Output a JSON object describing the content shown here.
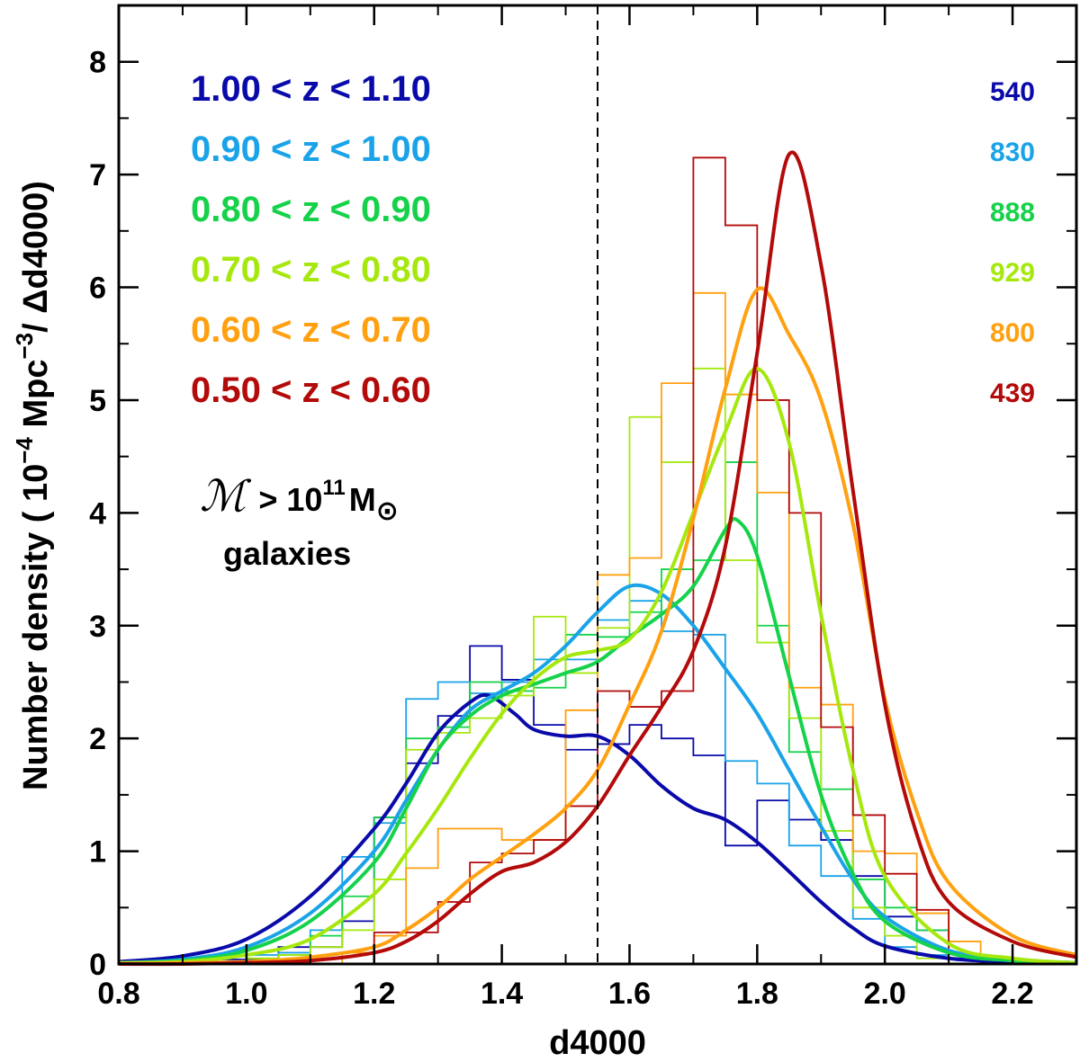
{
  "chart_data": {
    "type": "line",
    "xlabel": "d4000",
    "ylabel_prefix": "Number density ( 10",
    "ylabel_exp": "−4",
    "ylabel_mid": " Mpc",
    "ylabel_exp2": "−3",
    "ylabel_suffix": "/ Δd4000)",
    "xlim": [
      0.8,
      2.3
    ],
    "ylim": [
      0,
      8.5
    ],
    "xticks": [
      0.8,
      1.0,
      1.2,
      1.4,
      1.6,
      1.8,
      2.0,
      2.2
    ],
    "xtick_labels": [
      "0.8",
      "1.0",
      "1.2",
      "1.4",
      "1.6",
      "1.8",
      "2.0",
      "2.2"
    ],
    "yticks": [
      0,
      1,
      2,
      3,
      4,
      5,
      6,
      7,
      8
    ],
    "ytick_labels": [
      "0",
      "1",
      "2",
      "3",
      "4",
      "5",
      "6",
      "7",
      "8"
    ],
    "vline_x": 1.55,
    "annotation": {
      "mass_symbol": "ℳ",
      "mass_text": "> 10",
      "mass_exp": "11",
      "mass_unit": "M",
      "sun_symbol": "⊙",
      "line2": "galaxies"
    },
    "histogram_bins": [
      0.8,
      2.3,
      0.05
    ],
    "series": [
      {
        "name": "1.00 < z < 1.10",
        "count": "540",
        "color": "#0a0aaa",
        "hist": [
          0,
          0,
          0,
          0.04,
          0.04,
          0.15,
          0.15,
          0.38,
          1.3,
          1.78,
          2.2,
          2.82,
          2.52,
          2.12,
          1.9,
          1.95,
          2.12,
          2.0,
          1.85,
          1.05,
          1.45,
          1.28,
          1.1,
          0.78,
          0.42,
          0.3,
          0.05,
          0.02,
          0,
          0
        ],
        "curve_x": [
          0.8,
          0.9,
          1.0,
          1.1,
          1.2,
          1.25,
          1.3,
          1.35,
          1.38,
          1.42,
          1.45,
          1.5,
          1.55,
          1.6,
          1.65,
          1.7,
          1.75,
          1.8,
          1.85,
          1.9,
          1.95,
          2.0,
          2.1,
          2.2,
          2.3
        ],
        "curve_y": [
          0.02,
          0.07,
          0.22,
          0.6,
          1.2,
          1.6,
          2.05,
          2.32,
          2.38,
          2.22,
          2.08,
          2.02,
          2.02,
          1.85,
          1.58,
          1.38,
          1.28,
          1.08,
          0.82,
          0.55,
          0.32,
          0.16,
          0.05,
          0.02,
          0.01
        ]
      },
      {
        "name": "0.90 < z < 1.00",
        "count": "830",
        "color": "#1aa3e8",
        "hist": [
          0,
          0,
          0,
          0,
          0.08,
          0.1,
          0.3,
          0.95,
          1.25,
          2.35,
          2.5,
          2.4,
          2.5,
          2.7,
          2.7,
          3.05,
          3.22,
          2.95,
          2.92,
          1.8,
          1.6,
          1.05,
          0.78,
          0.4,
          0.15,
          0.08,
          0,
          0,
          0,
          0
        ],
        "curve_x": [
          0.8,
          0.9,
          1.0,
          1.1,
          1.2,
          1.25,
          1.3,
          1.35,
          1.4,
          1.45,
          1.5,
          1.55,
          1.6,
          1.65,
          1.7,
          1.75,
          1.8,
          1.85,
          1.9,
          1.95,
          2.0,
          2.1,
          2.2,
          2.3
        ],
        "curve_y": [
          0.01,
          0.04,
          0.15,
          0.45,
          1.0,
          1.45,
          1.9,
          2.25,
          2.42,
          2.58,
          2.82,
          3.12,
          3.35,
          3.28,
          3.0,
          2.62,
          2.22,
          1.72,
          1.22,
          0.75,
          0.42,
          0.12,
          0.04,
          0.01
        ]
      },
      {
        "name": "0.80 < z < 0.90",
        "count": "888",
        "color": "#15d24a",
        "hist": [
          0,
          0,
          0,
          0,
          0.05,
          0.08,
          0.25,
          0.6,
          1.3,
          2.0,
          2.1,
          2.5,
          2.42,
          2.45,
          2.92,
          2.9,
          3.12,
          3.5,
          3.58,
          4.45,
          3.0,
          1.88,
          1.55,
          0.75,
          0.5,
          0.3,
          0,
          0,
          0,
          0
        ],
        "curve_x": [
          0.8,
          0.9,
          1.0,
          1.1,
          1.2,
          1.25,
          1.3,
          1.35,
          1.4,
          1.45,
          1.5,
          1.55,
          1.6,
          1.65,
          1.7,
          1.75,
          1.77,
          1.8,
          1.85,
          1.9,
          1.95,
          2.0,
          2.1,
          2.2,
          2.3
        ],
        "curve_y": [
          0.01,
          0.03,
          0.12,
          0.38,
          0.9,
          1.38,
          1.9,
          2.2,
          2.38,
          2.48,
          2.58,
          2.68,
          2.9,
          3.1,
          3.35,
          3.85,
          3.93,
          3.62,
          2.55,
          1.5,
          0.8,
          0.38,
          0.1,
          0.03,
          0.01
        ]
      },
      {
        "name": "0.70 < z < 0.80",
        "count": "929",
        "color": "#a6e80e",
        "hist": [
          0,
          0,
          0,
          0.08,
          0.05,
          0.08,
          0.15,
          0.3,
          0.75,
          1.9,
          2.05,
          2.18,
          2.38,
          3.08,
          2.58,
          2.98,
          4.85,
          4.45,
          5.28,
          3.58,
          2.85,
          2.18,
          1.18,
          0.5,
          0.25,
          0.05,
          0,
          0,
          0,
          0
        ],
        "curve_x": [
          0.8,
          0.9,
          1.0,
          1.1,
          1.2,
          1.25,
          1.3,
          1.35,
          1.4,
          1.45,
          1.5,
          1.55,
          1.6,
          1.65,
          1.7,
          1.75,
          1.8,
          1.85,
          1.9,
          1.95,
          2.0,
          2.1,
          2.2,
          2.3
        ],
        "curve_y": [
          0.01,
          0.02,
          0.08,
          0.22,
          0.62,
          0.98,
          1.38,
          1.82,
          2.22,
          2.52,
          2.72,
          2.78,
          2.88,
          3.3,
          4.0,
          4.72,
          5.28,
          4.62,
          3.1,
          1.72,
          0.78,
          0.18,
          0.05,
          0.01
        ]
      },
      {
        "name": "0.60 < z < 0.70",
        "count": "800",
        "color": "#ffa010",
        "hist": [
          0,
          0,
          0,
          0,
          0,
          0,
          0,
          0.1,
          0.25,
          0.85,
          1.2,
          1.2,
          1.1,
          1.1,
          2.25,
          3.45,
          3.6,
          5.15,
          5.95,
          5.05,
          4.18,
          2.45,
          2.3,
          1.0,
          0.98,
          0.45,
          0.2,
          0,
          0,
          0
        ],
        "curve_x": [
          0.8,
          0.9,
          1.0,
          1.1,
          1.2,
          1.25,
          1.3,
          1.35,
          1.4,
          1.45,
          1.5,
          1.55,
          1.6,
          1.65,
          1.7,
          1.75,
          1.8,
          1.85,
          1.9,
          1.95,
          2.0,
          2.05,
          2.1,
          2.2,
          2.3
        ],
        "curve_y": [
          0,
          0.01,
          0.02,
          0.06,
          0.15,
          0.3,
          0.5,
          0.75,
          0.95,
          1.15,
          1.38,
          1.72,
          2.3,
          2.95,
          3.95,
          5.1,
          5.98,
          5.58,
          5.0,
          3.9,
          2.35,
          1.35,
          0.72,
          0.25,
          0.08
        ]
      },
      {
        "name": "0.50 < z < 0.60",
        "count": "439",
        "color": "#b30a0a",
        "hist": [
          0,
          0,
          0,
          0,
          0,
          0,
          0,
          0,
          0.28,
          0.28,
          0.55,
          0.9,
          0.98,
          1.1,
          1.4,
          2.42,
          2.28,
          2.42,
          7.15,
          6.55,
          5.0,
          4.0,
          2.1,
          1.32,
          0.8,
          0.48,
          0,
          0,
          0,
          0
        ],
        "curve_x": [
          0.8,
          0.9,
          1.0,
          1.1,
          1.2,
          1.25,
          1.3,
          1.35,
          1.4,
          1.45,
          1.5,
          1.55,
          1.6,
          1.65,
          1.7,
          1.75,
          1.8,
          1.85,
          1.9,
          1.95,
          2.0,
          2.05,
          2.1,
          2.2,
          2.3
        ],
        "curve_y": [
          0,
          0.0,
          0.01,
          0.03,
          0.1,
          0.2,
          0.38,
          0.62,
          0.82,
          0.9,
          1.08,
          1.4,
          1.85,
          2.28,
          2.78,
          3.7,
          5.42,
          7.18,
          6.2,
          4.2,
          2.3,
          1.15,
          0.55,
          0.2,
          0.06
        ]
      }
    ]
  }
}
